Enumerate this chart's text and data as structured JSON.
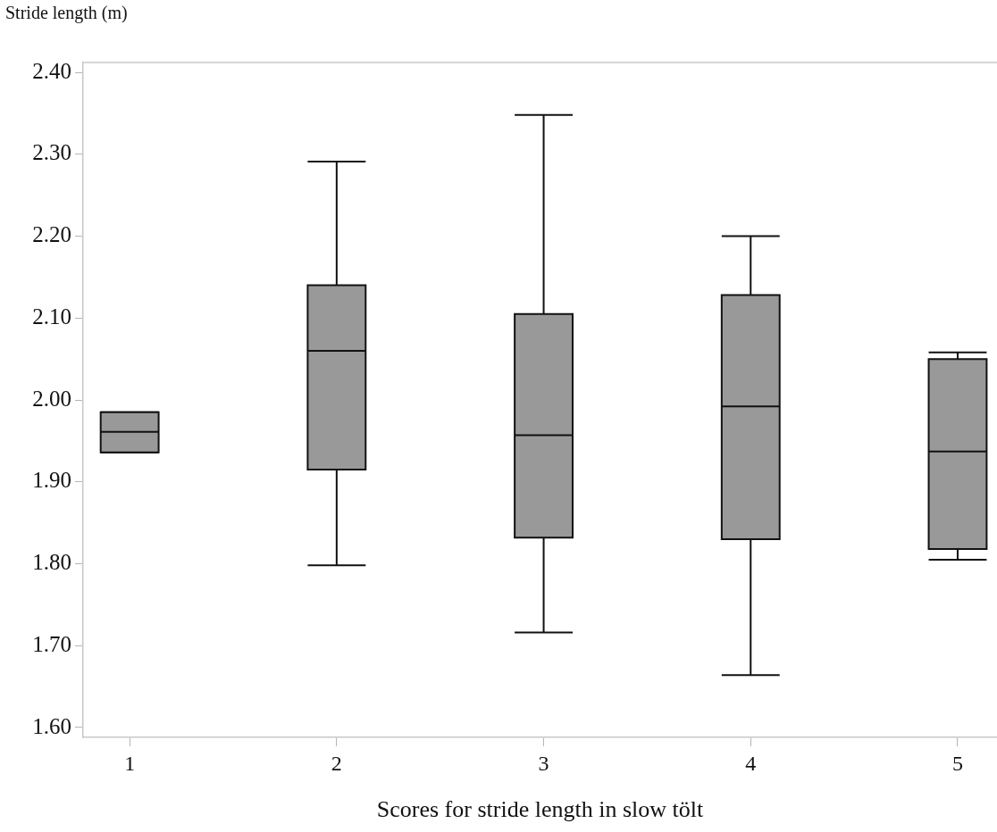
{
  "chart_data": {
    "type": "box",
    "ylabel": "Stride length (m)",
    "xlabel": "Scores for stride length in slow tölt",
    "categories": [
      "1",
      "2",
      "3",
      "4",
      "5"
    ],
    "color": "#999999",
    "boxes": [
      {
        "low": 1.936,
        "q1": 1.936,
        "median": 1.961,
        "q3": 1.985,
        "high": 1.985
      },
      {
        "low": 1.798,
        "q1": 1.915,
        "median": 2.06,
        "q3": 2.14,
        "high": 2.291
      },
      {
        "low": 1.716,
        "q1": 1.832,
        "median": 1.957,
        "q3": 2.105,
        "high": 2.348
      },
      {
        "low": 1.664,
        "q1": 1.83,
        "median": 1.992,
        "q3": 2.128,
        "high": 2.2
      },
      {
        "low": 1.805,
        "q1": 1.818,
        "median": 1.937,
        "q3": 2.05,
        "high": 2.058
      }
    ],
    "ylim": [
      1.588,
      2.412
    ],
    "yticks": [
      {
        "value": 1.6,
        "label": "1.60"
      },
      {
        "value": 1.7,
        "label": "1.70"
      },
      {
        "value": 1.8,
        "label": "1.80"
      },
      {
        "value": 1.9,
        "label": "1.90"
      },
      {
        "value": 2.0,
        "label": "2.00"
      },
      {
        "value": 2.1,
        "label": "2.10"
      },
      {
        "value": 2.2,
        "label": "2.20"
      },
      {
        "value": 2.3,
        "label": "2.30"
      },
      {
        "value": 2.4,
        "label": "2.40"
      }
    ],
    "grid": false
  }
}
